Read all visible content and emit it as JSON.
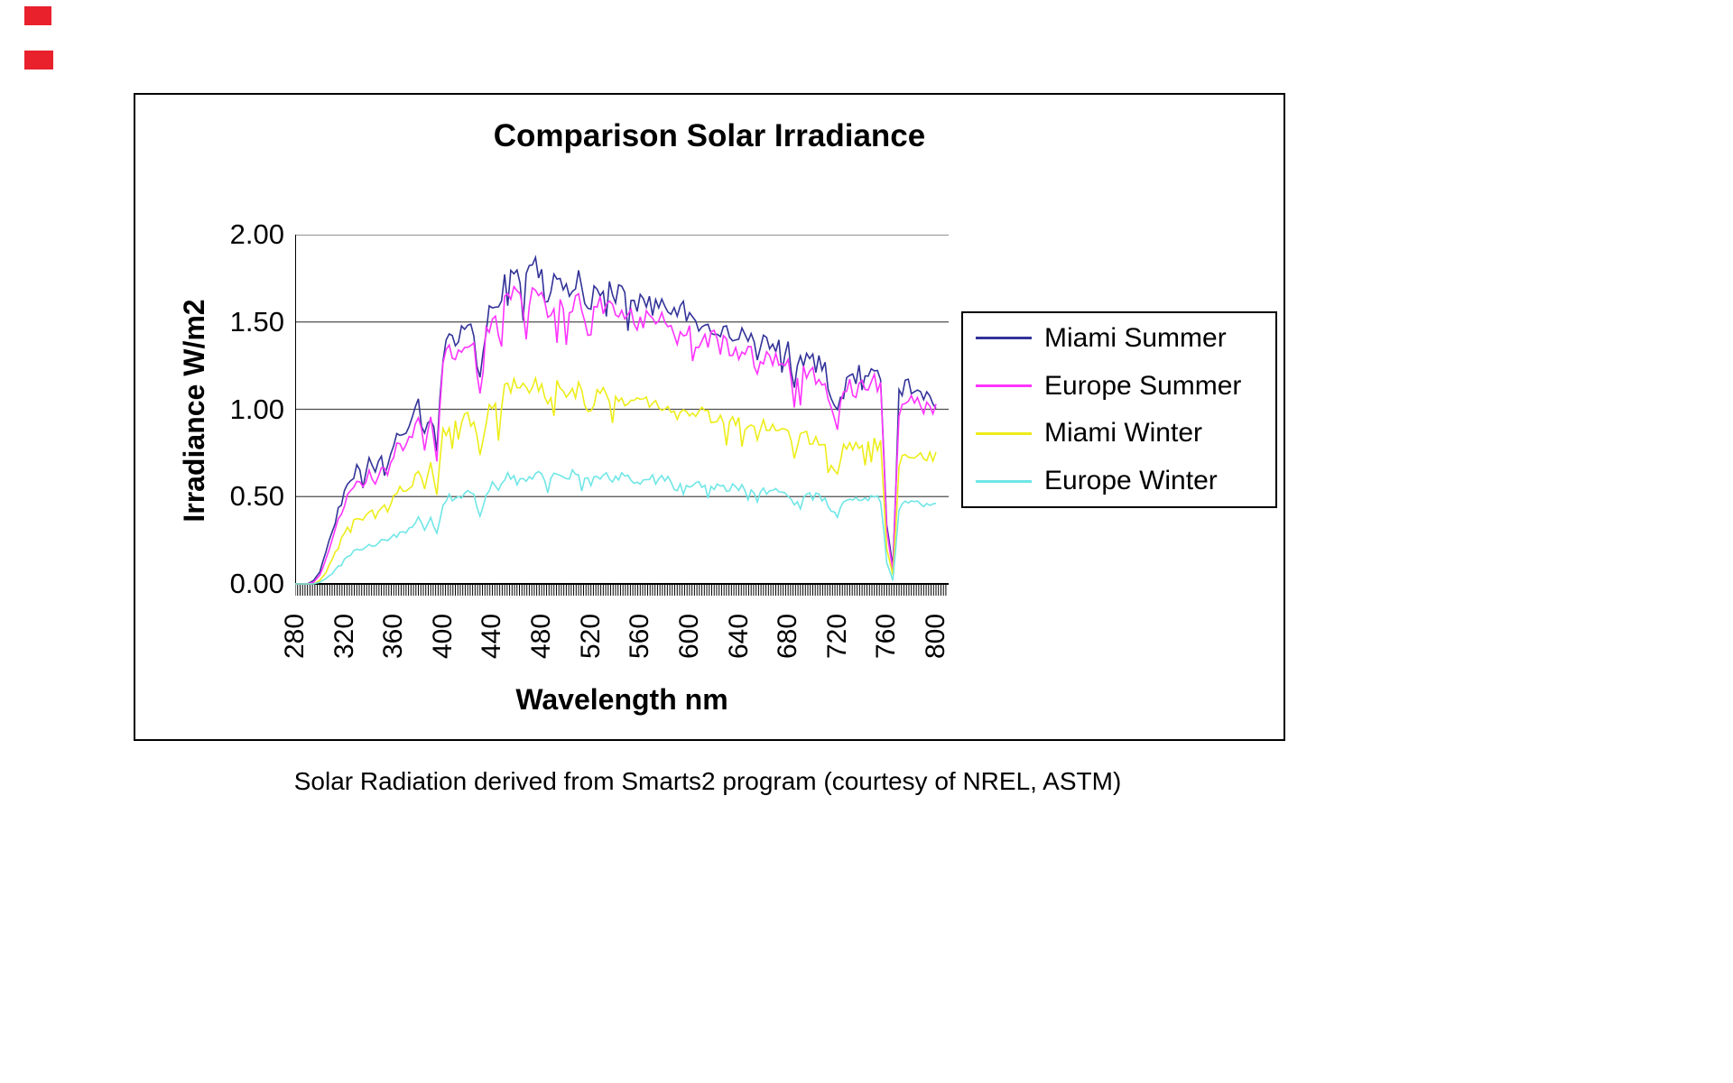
{
  "page": {
    "background": "#ffffff",
    "corner_mark_color": "#e8212d"
  },
  "chart": {
    "title": "Comparison Solar Irradiance",
    "ylabel": "Irradiance W/m2",
    "xlabel": "Wavelength nm",
    "caption": "Solar Radiation derived from Smarts2 program (courtesy of NREL, ASTM)"
  },
  "chart_data": {
    "type": "line",
    "title": "Comparison Solar Irradiance",
    "xlabel": "Wavelength nm",
    "ylabel": "Irradiance W/m2",
    "xlim": [
      280,
      810
    ],
    "ylim": [
      0,
      2
    ],
    "x_start": 280,
    "x_step": 5,
    "x_ticks": [
      280,
      320,
      360,
      400,
      440,
      480,
      520,
      560,
      600,
      640,
      680,
      720,
      760,
      800
    ],
    "y_ticks": [
      0.0,
      0.5,
      1.0,
      1.5,
      2.0
    ],
    "y_tick_labels": [
      "0.00",
      "0.50",
      "1.00",
      "1.50",
      "2.00"
    ],
    "grid": true,
    "legend_position": "right",
    "grid_color": "#4d4d4d",
    "axis_color": "#000000",
    "series": [
      {
        "name": "Miami Summer",
        "color": "#333399",
        "values": [
          0,
          0,
          0,
          0.02,
          0.07,
          0.18,
          0.3,
          0.42,
          0.52,
          0.6,
          0.66,
          0.6,
          0.7,
          0.64,
          0.72,
          0.68,
          0.8,
          0.88,
          0.83,
          0.92,
          1.02,
          0.84,
          1.06,
          0.78,
          1.32,
          1.42,
          1.38,
          1.46,
          1.5,
          1.44,
          1.15,
          1.5,
          1.62,
          1.52,
          1.74,
          1.8,
          1.83,
          1.74,
          1.79,
          1.81,
          1.77,
          1.58,
          1.73,
          1.76,
          1.7,
          1.72,
          1.73,
          1.62,
          1.58,
          1.72,
          1.7,
          1.66,
          1.63,
          1.67,
          1.64,
          1.61,
          1.59,
          1.63,
          1.6,
          1.58,
          1.61,
          1.56,
          1.49,
          1.56,
          1.53,
          1.51,
          1.51,
          1.49,
          1.49,
          1.46,
          1.45,
          1.43,
          1.43,
          1.41,
          1.41,
          1.26,
          1.39,
          1.37,
          1.36,
          1.34,
          1.33,
          1.12,
          1.3,
          1.29,
          1.27,
          1.26,
          1.23,
          1.06,
          0.97,
          1.19,
          1.21,
          1.19,
          1.23,
          1.21,
          1.23,
          1.21,
          0.35,
          0.1,
          1.08,
          1.16,
          1.13,
          1.11,
          1.09,
          1.06,
          1.05
        ]
      },
      {
        "name": "Europe Summer",
        "color": "#FF33FF",
        "values": [
          0,
          0,
          0,
          0.01,
          0.05,
          0.14,
          0.25,
          0.36,
          0.46,
          0.54,
          0.6,
          0.55,
          0.64,
          0.59,
          0.66,
          0.63,
          0.74,
          0.81,
          0.77,
          0.85,
          0.94,
          0.77,
          0.98,
          0.72,
          1.24,
          1.33,
          1.3,
          1.37,
          1.41,
          1.35,
          1.08,
          1.41,
          1.52,
          1.43,
          1.63,
          1.68,
          1.7,
          1.62,
          1.66,
          1.68,
          1.65,
          1.47,
          1.61,
          1.64,
          1.58,
          1.6,
          1.61,
          1.51,
          1.47,
          1.6,
          1.58,
          1.55,
          1.52,
          1.56,
          1.53,
          1.5,
          1.48,
          1.52,
          1.5,
          1.48,
          1.5,
          1.46,
          1.39,
          1.46,
          1.43,
          1.41,
          1.41,
          1.39,
          1.39,
          1.37,
          1.36,
          1.34,
          1.34,
          1.32,
          1.32,
          1.18,
          1.3,
          1.28,
          1.27,
          1.25,
          1.24,
          1.05,
          1.21,
          1.21,
          1.19,
          1.18,
          1.15,
          0.99,
          0.9,
          1.11,
          1.13,
          1.11,
          1.15,
          1.13,
          1.15,
          1.13,
          0.3,
          0.08,
          1.0,
          1.08,
          1.06,
          1.04,
          1.02,
          1.0,
          0.99
        ]
      },
      {
        "name": "Miami Winter",
        "color": "#EDED1A",
        "values": [
          0,
          0,
          0,
          0,
          0.02,
          0.07,
          0.14,
          0.22,
          0.29,
          0.34,
          0.39,
          0.36,
          0.42,
          0.39,
          0.45,
          0.43,
          0.5,
          0.55,
          0.52,
          0.58,
          0.66,
          0.54,
          0.69,
          0.5,
          0.86,
          0.92,
          0.9,
          0.94,
          0.96,
          0.92,
          0.73,
          0.95,
          1.03,
          0.97,
          1.1,
          1.14,
          1.16,
          1.11,
          1.14,
          1.15,
          1.14,
          1.01,
          1.11,
          1.13,
          1.09,
          1.1,
          1.11,
          1.04,
          1.01,
          1.1,
          1.09,
          1.07,
          1.05,
          1.07,
          1.06,
          1.04,
          1.02,
          1.05,
          1.04,
          1.02,
          1.04,
          1.0,
          0.96,
          1.0,
          0.99,
          0.98,
          0.97,
          0.96,
          0.96,
          0.95,
          0.94,
          0.93,
          0.93,
          0.92,
          0.91,
          0.82,
          0.9,
          0.89,
          0.88,
          0.87,
          0.86,
          0.73,
          0.84,
          0.84,
          0.83,
          0.82,
          0.8,
          0.69,
          0.63,
          0.78,
          0.79,
          0.78,
          0.8,
          0.79,
          0.8,
          0.79,
          0.2,
          0.05,
          0.7,
          0.76,
          0.75,
          0.74,
          0.74,
          0.73,
          0.73
        ]
      },
      {
        "name": "Europe Winter",
        "color": "#70E6E6",
        "values": [
          0,
          0,
          0,
          0,
          0.01,
          0.03,
          0.06,
          0.1,
          0.14,
          0.17,
          0.2,
          0.19,
          0.23,
          0.21,
          0.25,
          0.24,
          0.28,
          0.31,
          0.29,
          0.33,
          0.37,
          0.31,
          0.39,
          0.28,
          0.47,
          0.5,
          0.49,
          0.51,
          0.52,
          0.5,
          0.4,
          0.52,
          0.56,
          0.53,
          0.6,
          0.62,
          0.63,
          0.6,
          0.62,
          0.63,
          0.64,
          0.57,
          0.62,
          0.63,
          0.62,
          0.63,
          0.63,
          0.59,
          0.58,
          0.63,
          0.62,
          0.61,
          0.6,
          0.62,
          0.61,
          0.6,
          0.59,
          0.61,
          0.6,
          0.59,
          0.6,
          0.58,
          0.55,
          0.58,
          0.58,
          0.57,
          0.57,
          0.56,
          0.56,
          0.56,
          0.55,
          0.55,
          0.55,
          0.54,
          0.54,
          0.49,
          0.54,
          0.53,
          0.53,
          0.52,
          0.52,
          0.45,
          0.51,
          0.51,
          0.5,
          0.5,
          0.49,
          0.43,
          0.39,
          0.48,
          0.49,
          0.48,
          0.5,
          0.49,
          0.5,
          0.49,
          0.12,
          0.02,
          0.43,
          0.47,
          0.46,
          0.46,
          0.45,
          0.45,
          0.45
        ]
      }
    ]
  }
}
